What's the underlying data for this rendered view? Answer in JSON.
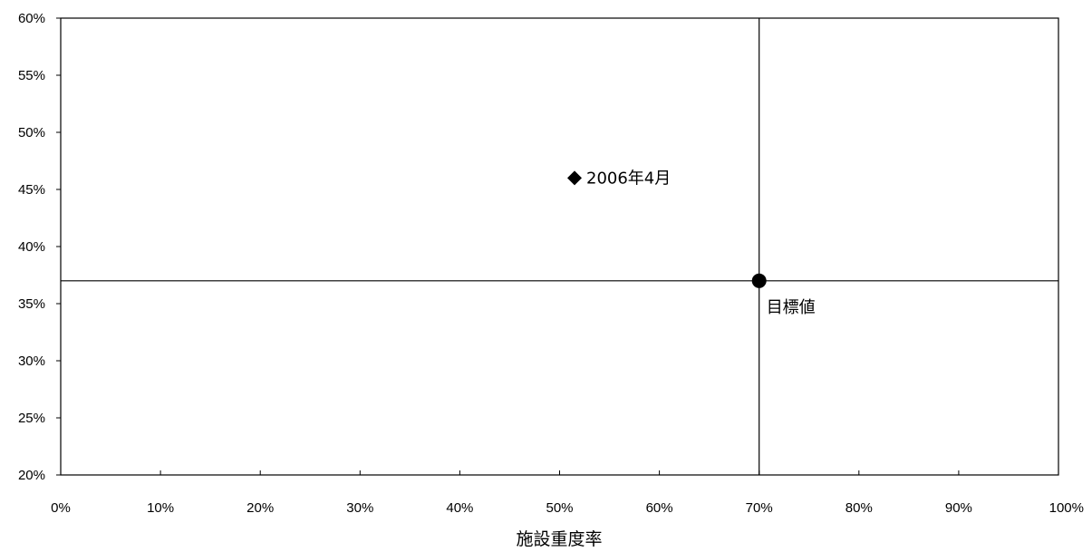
{
  "chart_data": {
    "type": "scatter",
    "title": "",
    "xlabel": "施設重度率",
    "ylabel": "",
    "xlim": [
      0,
      1
    ],
    "ylim": [
      0.2,
      0.6
    ],
    "x_ticks": [
      "0%",
      "10%",
      "20%",
      "30%",
      "40%",
      "50%",
      "60%",
      "70%",
      "80%",
      "90%",
      "100%"
    ],
    "y_ticks": [
      "20%",
      "25%",
      "30%",
      "35%",
      "40%",
      "45%",
      "50%",
      "55%",
      "60%"
    ],
    "grid": false,
    "points": [
      {
        "label": "2006年4月",
        "x": 0.515,
        "y": 0.46,
        "marker": "diamond"
      },
      {
        "label": "目標値",
        "x": 0.7,
        "y": 0.37,
        "marker": "circle"
      }
    ],
    "reference_lines": {
      "x": 0.7,
      "y": 0.37
    },
    "colors": {
      "marks": "#000000",
      "background": "#ffffff"
    }
  }
}
